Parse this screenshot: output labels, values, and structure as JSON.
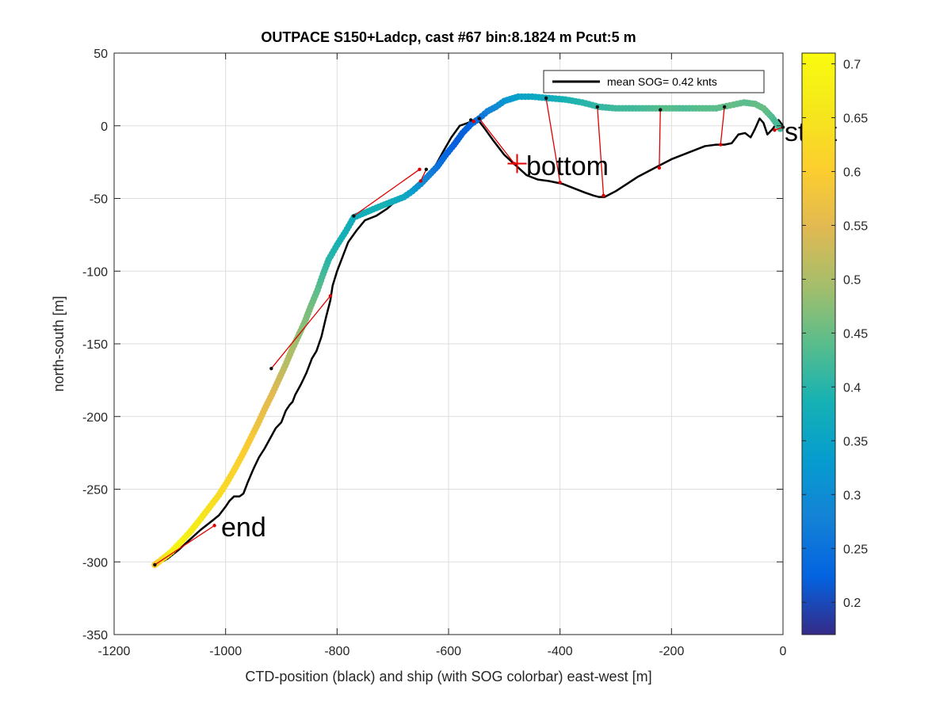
{
  "chart_data": {
    "type": "scatter",
    "title": "OUTPACE S150+Ladcp, cast #67 bin:8.1824 m  Pcut:5 m",
    "xlabel": "CTD-position (black) and ship (with SOG colorbar) east-west [m]",
    "ylabel": "north-south [m]",
    "xlim": [
      -1200,
      0
    ],
    "ylim": [
      -350,
      50
    ],
    "xticks": [
      -1200,
      -1000,
      -800,
      -600,
      -400,
      -200,
      0
    ],
    "yticks": [
      -350,
      -300,
      -250,
      -200,
      -150,
      -100,
      -50,
      0,
      50
    ],
    "grid": true,
    "legend": {
      "entries": [
        "mean SOG=  0.42 knts"
      ],
      "placement": "top-right"
    },
    "colorbar": {
      "range": [
        0.17,
        0.71
      ],
      "ticks": [
        0.2,
        0.25,
        0.3,
        0.35,
        0.4,
        0.45,
        0.5,
        0.55,
        0.6,
        0.65,
        0.7
      ],
      "colormap": "parula"
    },
    "annotations": [
      {
        "text": "start",
        "x": 0,
        "y": -5
      },
      {
        "text": "bottom",
        "x": -480,
        "y": -27
      },
      {
        "text": "end",
        "x": -1020,
        "y": -275
      }
    ],
    "bottom_marker": {
      "x": -477,
      "y": -26
    },
    "ctd_track": [
      [
        0,
        0
      ],
      [
        -8,
        4
      ],
      [
        -18,
        -2
      ],
      [
        -28,
        -6
      ],
      [
        -35,
        2
      ],
      [
        -42,
        5
      ],
      [
        -50,
        -2
      ],
      [
        -58,
        -8
      ],
      [
        -68,
        -5
      ],
      [
        -80,
        -6
      ],
      [
        -92,
        -12
      ],
      [
        -105,
        -13
      ],
      [
        -120,
        -13
      ],
      [
        -140,
        -14
      ],
      [
        -160,
        -17
      ],
      [
        -180,
        -20
      ],
      [
        -200,
        -23
      ],
      [
        -220,
        -27
      ],
      [
        -240,
        -31
      ],
      [
        -260,
        -35
      ],
      [
        -280,
        -40
      ],
      [
        -300,
        -45
      ],
      [
        -320,
        -49
      ],
      [
        -330,
        -49
      ],
      [
        -340,
        -48
      ],
      [
        -355,
        -46
      ],
      [
        -375,
        -43
      ],
      [
        -395,
        -40
      ],
      [
        -420,
        -38
      ],
      [
        -440,
        -37
      ],
      [
        -460,
        -34
      ],
      [
        -480,
        -27
      ],
      [
        -500,
        -20
      ],
      [
        -520,
        -10
      ],
      [
        -535,
        -2
      ],
      [
        -545,
        3
      ],
      [
        -555,
        4
      ],
      [
        -565,
        2
      ],
      [
        -580,
        0
      ],
      [
        -595,
        -8
      ],
      [
        -610,
        -18
      ],
      [
        -630,
        -32
      ],
      [
        -650,
        -38
      ],
      [
        -670,
        -45
      ],
      [
        -690,
        -50
      ],
      [
        -710,
        -57
      ],
      [
        -730,
        -62
      ],
      [
        -750,
        -65
      ],
      [
        -765,
        -72
      ],
      [
        -780,
        -80
      ],
      [
        -790,
        -90
      ],
      [
        -800,
        -100
      ],
      [
        -808,
        -110
      ],
      [
        -812,
        -120
      ],
      [
        -820,
        -132
      ],
      [
        -828,
        -145
      ],
      [
        -837,
        -155
      ],
      [
        -845,
        -160
      ],
      [
        -855,
        -170
      ],
      [
        -865,
        -178
      ],
      [
        -875,
        -185
      ],
      [
        -880,
        -190
      ],
      [
        -885,
        -192
      ],
      [
        -892,
        -196
      ],
      [
        -900,
        -204
      ],
      [
        -910,
        -208
      ],
      [
        -920,
        -215
      ],
      [
        -930,
        -222
      ],
      [
        -940,
        -228
      ],
      [
        -950,
        -236
      ],
      [
        -960,
        -245
      ],
      [
        -968,
        -253
      ],
      [
        -975,
        -255
      ],
      [
        -985,
        -255
      ],
      [
        -993,
        -258
      ],
      [
        -1000,
        -262
      ],
      [
        -1012,
        -268
      ],
      [
        -1025,
        -272
      ],
      [
        -1045,
        -278
      ],
      [
        -1065,
        -285
      ],
      [
        -1085,
        -292
      ],
      [
        -1105,
        -298
      ],
      [
        -1125,
        -302
      ]
    ],
    "ship_track": [
      {
        "x": -5,
        "y": -2,
        "sog": 0.42
      },
      {
        "x": -20,
        "y": 6,
        "sog": 0.43
      },
      {
        "x": -35,
        "y": 12,
        "sog": 0.45
      },
      {
        "x": -50,
        "y": 15,
        "sog": 0.45
      },
      {
        "x": -70,
        "y": 16,
        "sog": 0.44
      },
      {
        "x": -95,
        "y": 14,
        "sog": 0.45
      },
      {
        "x": -120,
        "y": 12,
        "sog": 0.44
      },
      {
        "x": -150,
        "y": 12,
        "sog": 0.44
      },
      {
        "x": -180,
        "y": 12,
        "sog": 0.43
      },
      {
        "x": -210,
        "y": 12,
        "sog": 0.44
      },
      {
        "x": -240,
        "y": 12,
        "sog": 0.43
      },
      {
        "x": -270,
        "y": 12,
        "sog": 0.42
      },
      {
        "x": -300,
        "y": 12,
        "sog": 0.42
      },
      {
        "x": -330,
        "y": 13,
        "sog": 0.41
      },
      {
        "x": -360,
        "y": 16,
        "sog": 0.4
      },
      {
        "x": -390,
        "y": 18,
        "sog": 0.39
      },
      {
        "x": -420,
        "y": 19,
        "sog": 0.37
      },
      {
        "x": -450,
        "y": 20,
        "sog": 0.36
      },
      {
        "x": -475,
        "y": 20,
        "sog": 0.35
      },
      {
        "x": -500,
        "y": 17,
        "sog": 0.32
      },
      {
        "x": -515,
        "y": 13,
        "sog": 0.3
      },
      {
        "x": -530,
        "y": 10,
        "sog": 0.28
      },
      {
        "x": -545,
        "y": 5,
        "sog": 0.25
      },
      {
        "x": -560,
        "y": 1,
        "sog": 0.23
      },
      {
        "x": -575,
        "y": -5,
        "sog": 0.22
      },
      {
        "x": -590,
        "y": -13,
        "sog": 0.22
      },
      {
        "x": -605,
        "y": -20,
        "sog": 0.23
      },
      {
        "x": -620,
        "y": -28,
        "sog": 0.25
      },
      {
        "x": -635,
        "y": -34,
        "sog": 0.27
      },
      {
        "x": -650,
        "y": -40,
        "sog": 0.3
      },
      {
        "x": -665,
        "y": -45,
        "sog": 0.33
      },
      {
        "x": -680,
        "y": -49,
        "sog": 0.36
      },
      {
        "x": -700,
        "y": -52,
        "sog": 0.37
      },
      {
        "x": -720,
        "y": -55,
        "sog": 0.39
      },
      {
        "x": -745,
        "y": -59,
        "sog": 0.38
      },
      {
        "x": -770,
        "y": -63,
        "sog": 0.37
      },
      {
        "x": -785,
        "y": -73,
        "sog": 0.38
      },
      {
        "x": -800,
        "y": -82,
        "sog": 0.39
      },
      {
        "x": -815,
        "y": -92,
        "sog": 0.4
      },
      {
        "x": -825,
        "y": -102,
        "sog": 0.42
      },
      {
        "x": -835,
        "y": -113,
        "sog": 0.44
      },
      {
        "x": -848,
        "y": -125,
        "sog": 0.46
      },
      {
        "x": -858,
        "y": -135,
        "sog": 0.47
      },
      {
        "x": -870,
        "y": -145,
        "sog": 0.48
      },
      {
        "x": -882,
        "y": -155,
        "sog": 0.5
      },
      {
        "x": -893,
        "y": -165,
        "sog": 0.51
      },
      {
        "x": -905,
        "y": -175,
        "sog": 0.53
      },
      {
        "x": -917,
        "y": -185,
        "sog": 0.55
      },
      {
        "x": -930,
        "y": -195,
        "sog": 0.56
      },
      {
        "x": -942,
        "y": -205,
        "sog": 0.57
      },
      {
        "x": -955,
        "y": -215,
        "sog": 0.59
      },
      {
        "x": -968,
        "y": -225,
        "sog": 0.6
      },
      {
        "x": -982,
        "y": -235,
        "sog": 0.61
      },
      {
        "x": -997,
        "y": -245,
        "sog": 0.62
      },
      {
        "x": -1012,
        "y": -254,
        "sog": 0.63
      },
      {
        "x": -1030,
        "y": -263,
        "sog": 0.64
      },
      {
        "x": -1048,
        "y": -272,
        "sog": 0.66
      },
      {
        "x": -1065,
        "y": -280,
        "sog": 0.67
      },
      {
        "x": -1082,
        "y": -287,
        "sog": 0.69
      },
      {
        "x": -1097,
        "y": -293,
        "sog": 0.68
      },
      {
        "x": -1110,
        "y": -297,
        "sog": 0.65
      },
      {
        "x": -1120,
        "y": -300,
        "sog": 0.62
      },
      {
        "x": -1127,
        "y": -302,
        "sog": 0.6
      }
    ],
    "connectors": [
      {
        "ship": [
          0,
          -1
        ],
        "ctd": [
          -15,
          -3
        ]
      },
      {
        "ship": [
          -105,
          13
        ],
        "ctd": [
          -112,
          -13
        ]
      },
      {
        "ship": [
          -220,
          11
        ],
        "ctd": [
          -222,
          -29
        ]
      },
      {
        "ship": [
          -333,
          13
        ],
        "ctd": [
          -322,
          -48
        ]
      },
      {
        "ship": [
          -425,
          19
        ],
        "ctd": [
          -400,
          -39
        ]
      },
      {
        "ship": [
          -545,
          5
        ],
        "ctd": [
          -482,
          -26
        ]
      },
      {
        "ship": [
          -560,
          4
        ],
        "ctd": [
          -555,
          3
        ]
      },
      {
        "ship": [
          -640,
          -30
        ],
        "ctd": [
          -650,
          -38
        ]
      },
      {
        "ship": [
          -770,
          -62
        ],
        "ctd": [
          -652,
          -30
        ]
      },
      {
        "ship": [
          -918,
          -167
        ],
        "ctd": [
          -812,
          -117
        ]
      },
      {
        "ship": [
          -1127,
          -302
        ],
        "ctd": [
          -1020,
          -275
        ]
      }
    ]
  }
}
